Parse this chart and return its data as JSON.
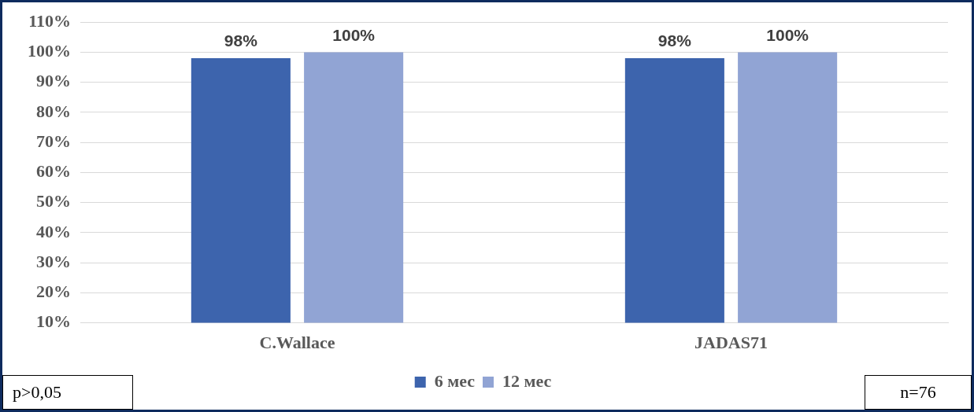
{
  "chart_data": {
    "type": "bar",
    "categories": [
      "C.Wallace",
      "JADAS71"
    ],
    "series": [
      {
        "name": "6 мес",
        "color": "#3d64ad",
        "values": [
          98,
          98
        ],
        "value_labels": [
          "98%",
          "98%"
        ]
      },
      {
        "name": "12 мес",
        "color": "#91a4d4",
        "values": [
          100,
          100
        ],
        "value_labels": [
          "100%",
          "100%"
        ]
      }
    ],
    "ylim": [
      10,
      110
    ],
    "yticks": [
      {
        "value": 10,
        "label": "10%"
      },
      {
        "value": 20,
        "label": "20%"
      },
      {
        "value": 30,
        "label": "30%"
      },
      {
        "value": 40,
        "label": "40%"
      },
      {
        "value": 50,
        "label": "50%"
      },
      {
        "value": 60,
        "label": "60%"
      },
      {
        "value": 70,
        "label": "70%"
      },
      {
        "value": 80,
        "label": "80%"
      },
      {
        "value": 90,
        "label": "90%"
      },
      {
        "value": 100,
        "label": "100%"
      },
      {
        "value": 110,
        "label": "110%"
      }
    ],
    "grid": "y",
    "legend": "bottom",
    "annotations": [
      "p>0,05",
      "n=76"
    ]
  }
}
